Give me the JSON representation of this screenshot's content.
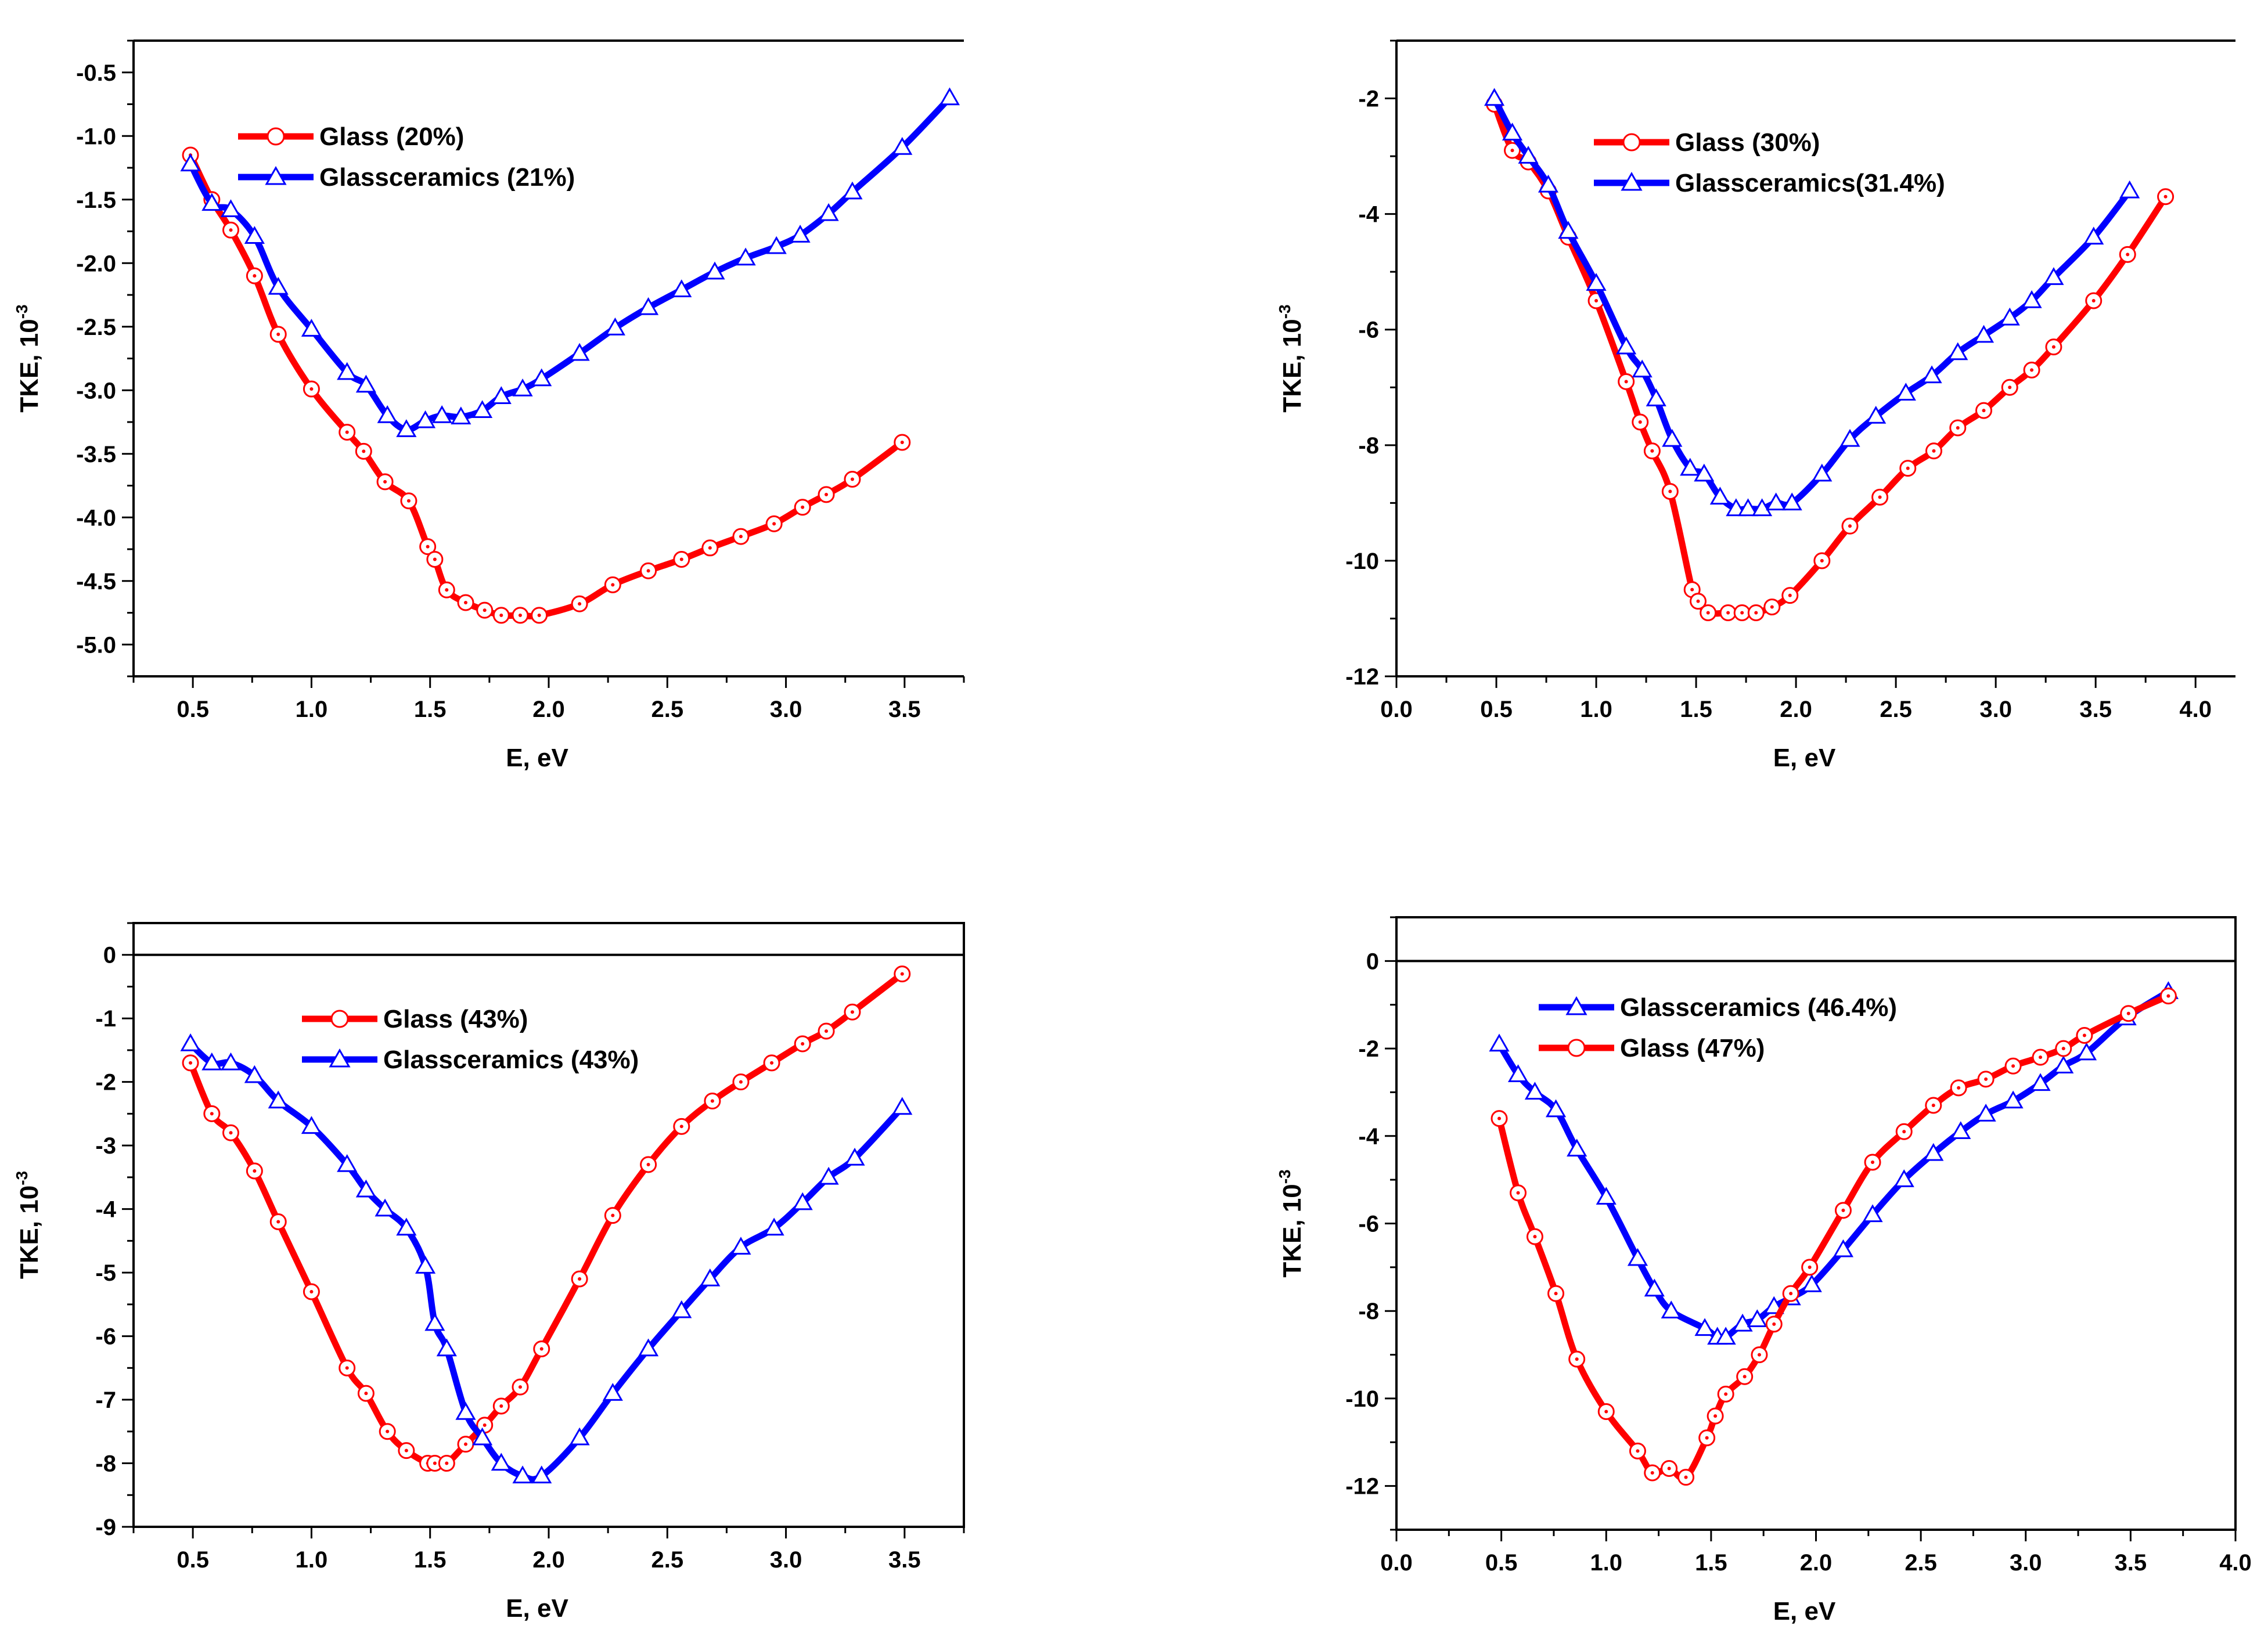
{
  "chart_data": [
    {
      "type": "line",
      "title": "",
      "xlabel": "E, eV",
      "ylabel": "TKE, 10",
      "ylabel_exponent": "-3",
      "xlim": [
        0.25,
        3.75
      ],
      "ylim": [
        -5.25,
        -0.25
      ],
      "frame": "open",
      "top_line_value": null,
      "xticks": [
        0.5,
        1.0,
        1.5,
        2.0,
        2.5,
        3.0,
        3.5
      ],
      "xtick_labels": [
        "0.5",
        "1.0",
        "1.5",
        "2.0",
        "2.5",
        "3.0",
        "3.5"
      ],
      "yticks": [
        -0.5,
        -1.0,
        -1.5,
        -2.0,
        -2.5,
        -3.0,
        -3.5,
        -4.0,
        -4.5,
        -5.0
      ],
      "ytick_labels": [
        "-0.5",
        "-1.0",
        "-1.5",
        "-2.0",
        "-2.5",
        "-3.0",
        "-3.5",
        "-4.0",
        "-4.5",
        "-5.0"
      ],
      "legend_position": "top-left",
      "series": [
        {
          "name": "Glass (20%)",
          "color": "#ff0000",
          "marker": "circle",
          "x": [
            0.49,
            0.58,
            0.66,
            0.76,
            0.86,
            1.0,
            1.15,
            1.22,
            1.31,
            1.41,
            1.49,
            1.52,
            1.57,
            1.65,
            1.73,
            1.8,
            1.88,
            1.96,
            2.13,
            2.27,
            2.42,
            2.56,
            2.68,
            2.81,
            2.95,
            3.07,
            3.17,
            3.28,
            3.49
          ],
          "y": [
            -1.15,
            -1.5,
            -1.74,
            -2.1,
            -2.56,
            -2.99,
            -3.33,
            -3.48,
            -3.72,
            -3.87,
            -4.23,
            -4.33,
            -4.57,
            -4.67,
            -4.73,
            -4.77,
            -4.77,
            -4.77,
            -4.68,
            -4.53,
            -4.42,
            -4.33,
            -4.24,
            -4.15,
            -4.05,
            -3.92,
            -3.82,
            -3.7,
            -3.41
          ]
        },
        {
          "name": "Glassceramics (21%)",
          "color": "#0000ff",
          "marker": "triangle",
          "x": [
            0.49,
            0.58,
            0.66,
            0.76,
            0.86,
            1.0,
            1.15,
            1.23,
            1.32,
            1.4,
            1.48,
            1.55,
            1.63,
            1.72,
            1.8,
            1.89,
            1.97,
            2.13,
            2.28,
            2.42,
            2.56,
            2.7,
            2.83,
            2.96,
            3.06,
            3.18,
            3.28,
            3.49,
            3.69
          ],
          "y": [
            -1.22,
            -1.53,
            -1.58,
            -1.79,
            -2.19,
            -2.52,
            -2.86,
            -2.96,
            -3.2,
            -3.31,
            -3.24,
            -3.2,
            -3.21,
            -3.16,
            -3.05,
            -2.99,
            -2.91,
            -2.71,
            -2.51,
            -2.35,
            -2.21,
            -2.07,
            -1.96,
            -1.87,
            -1.78,
            -1.61,
            -1.44,
            -1.09,
            -0.7
          ]
        }
      ]
    },
    {
      "type": "line",
      "title": "",
      "xlabel": "E, eV",
      "ylabel": "TKE, 10",
      "ylabel_exponent": "-3",
      "xlim": [
        0.0,
        4.2
      ],
      "ylim": [
        -12.0,
        -1.0
      ],
      "frame": "open",
      "top_line_value": null,
      "xticks": [
        0.0,
        0.5,
        1.0,
        1.5,
        2.0,
        2.5,
        3.0,
        3.5,
        4.0
      ],
      "xtick_labels": [
        "0.0",
        "0.5",
        "1.0",
        "1.5",
        "2.0",
        "2.5",
        "3.0",
        "3.5",
        "4.0"
      ],
      "yticks": [
        -2,
        -4,
        -6,
        -8,
        -10,
        -12
      ],
      "ytick_labels": [
        "-2",
        "-4",
        "-6",
        "-8",
        "-10",
        "-12"
      ],
      "legend_position": "top-left",
      "series": [
        {
          "name": "Glass (30%)",
          "color": "#ff0000",
          "marker": "circle",
          "x": [
            0.49,
            0.58,
            0.66,
            0.76,
            0.86,
            1.0,
            1.15,
            1.22,
            1.28,
            1.37,
            1.48,
            1.51,
            1.56,
            1.66,
            1.73,
            1.8,
            1.88,
            1.97,
            2.13,
            2.27,
            2.42,
            2.56,
            2.69,
            2.81,
            2.94,
            3.07,
            3.18,
            3.29,
            3.49,
            3.66,
            3.85
          ],
          "y": [
            -2.1,
            -2.9,
            -3.1,
            -3.6,
            -4.4,
            -5.5,
            -6.9,
            -7.6,
            -8.1,
            -8.8,
            -10.5,
            -10.7,
            -10.9,
            -10.9,
            -10.9,
            -10.9,
            -10.8,
            -10.6,
            -10.0,
            -9.4,
            -8.9,
            -8.4,
            -8.1,
            -7.7,
            -7.4,
            -7.0,
            -6.7,
            -6.3,
            -5.5,
            -4.7,
            -3.7
          ]
        },
        {
          "name": "Glassceramics(31.4%)",
          "color": "#0000ff",
          "marker": "triangle",
          "x": [
            0.49,
            0.58,
            0.66,
            0.76,
            0.86,
            1.0,
            1.15,
            1.23,
            1.3,
            1.38,
            1.47,
            1.54,
            1.62,
            1.7,
            1.76,
            1.83,
            1.9,
            1.98,
            2.13,
            2.27,
            2.4,
            2.55,
            2.68,
            2.81,
            2.94,
            3.07,
            3.18,
            3.29,
            3.49,
            3.67
          ],
          "y": [
            -2.0,
            -2.6,
            -3.0,
            -3.5,
            -4.3,
            -5.2,
            -6.3,
            -6.7,
            -7.2,
            -7.9,
            -8.4,
            -8.5,
            -8.9,
            -9.1,
            -9.1,
            -9.1,
            -9.0,
            -9.0,
            -8.5,
            -7.9,
            -7.5,
            -7.1,
            -6.8,
            -6.4,
            -6.1,
            -5.8,
            -5.5,
            -5.1,
            -4.4,
            -3.6
          ]
        }
      ]
    },
    {
      "type": "line",
      "title": "",
      "xlabel": "E, eV",
      "ylabel": "TKE, 10",
      "ylabel_exponent": "-3",
      "xlim": [
        0.25,
        3.75
      ],
      "ylim": [
        -9.0,
        0.5
      ],
      "frame": "box",
      "top_line_value": 0,
      "xticks": [
        0.5,
        1.0,
        1.5,
        2.0,
        2.5,
        3.0,
        3.5
      ],
      "xtick_labels": [
        "0.5",
        "1.0",
        "1.5",
        "2.0",
        "2.5",
        "3.0",
        "3.5"
      ],
      "yticks": [
        0,
        -1,
        -2,
        -3,
        -4,
        -5,
        -6,
        -7,
        -8,
        -9
      ],
      "ytick_labels": [
        "0",
        "-1",
        "-2",
        "-3",
        "-4",
        "-5",
        "-6",
        "-7",
        "-8",
        "-9"
      ],
      "legend_position": "top-center",
      "series": [
        {
          "name": "Glass (43%)",
          "color": "#ff0000",
          "marker": "circle",
          "x": [
            0.49,
            0.58,
            0.66,
            0.76,
            0.86,
            1.0,
            1.15,
            1.23,
            1.32,
            1.4,
            1.49,
            1.52,
            1.57,
            1.65,
            1.73,
            1.8,
            1.88,
            1.97,
            2.13,
            2.27,
            2.42,
            2.56,
            2.69,
            2.81,
            2.94,
            3.07,
            3.17,
            3.28,
            3.49
          ],
          "y": [
            -1.7,
            -2.5,
            -2.8,
            -3.4,
            -4.2,
            -5.3,
            -6.5,
            -6.9,
            -7.5,
            -7.8,
            -8.0,
            -8.0,
            -8.0,
            -7.7,
            -7.4,
            -7.1,
            -6.8,
            -6.2,
            -5.1,
            -4.1,
            -3.3,
            -2.7,
            -2.3,
            -2.0,
            -1.7,
            -1.4,
            -1.2,
            -0.9,
            -0.3
          ]
        },
        {
          "name": "Glassceramics (43%)",
          "color": "#0000ff",
          "marker": "triangle",
          "x": [
            0.49,
            0.58,
            0.66,
            0.76,
            0.86,
            1.0,
            1.15,
            1.23,
            1.31,
            1.4,
            1.48,
            1.52,
            1.57,
            1.65,
            1.72,
            1.8,
            1.89,
            1.97,
            2.13,
            2.27,
            2.42,
            2.56,
            2.68,
            2.81,
            2.95,
            3.07,
            3.18,
            3.29,
            3.49
          ],
          "y": [
            -1.4,
            -1.7,
            -1.7,
            -1.9,
            -2.3,
            -2.7,
            -3.3,
            -3.7,
            -4.0,
            -4.3,
            -4.9,
            -5.8,
            -6.2,
            -7.2,
            -7.6,
            -8.0,
            -8.2,
            -8.2,
            -7.6,
            -6.9,
            -6.2,
            -5.6,
            -5.1,
            -4.6,
            -4.3,
            -3.9,
            -3.5,
            -3.2,
            -2.4
          ]
        }
      ]
    },
    {
      "type": "line",
      "title": "",
      "xlabel": "E, eV",
      "ylabel": "TKE, 10",
      "ylabel_exponent": "-3",
      "xlim": [
        0.0,
        4.0
      ],
      "ylim": [
        -13.0,
        1.0
      ],
      "frame": "box",
      "top_line_value": 0,
      "xticks": [
        0.0,
        0.5,
        1.0,
        1.5,
        2.0,
        2.5,
        3.0,
        3.5,
        4.0
      ],
      "xtick_labels": [
        "0.0",
        "0.5",
        "1.0",
        "1.5",
        "2.0",
        "2.5",
        "3.0",
        "3.5",
        "4.0"
      ],
      "yticks": [
        0,
        -2,
        -4,
        -6,
        -8,
        -10,
        -12
      ],
      "ytick_labels": [
        "0",
        "-2",
        "-4",
        "-6",
        "-8",
        "-10",
        "-12"
      ],
      "legend_position": "top-left",
      "series": [
        {
          "name": "Glassceramics (46.4%)",
          "color": "#0000ff",
          "marker": "triangle",
          "x": [
            0.49,
            0.58,
            0.66,
            0.76,
            0.86,
            1.0,
            1.15,
            1.23,
            1.31,
            1.47,
            1.53,
            1.57,
            1.65,
            1.72,
            1.8,
            1.88,
            1.98,
            2.13,
            2.27,
            2.42,
            2.56,
            2.69,
            2.81,
            2.94,
            3.07,
            3.18,
            3.29,
            3.48,
            3.68
          ],
          "y": [
            -1.9,
            -2.6,
            -3.0,
            -3.4,
            -4.3,
            -5.4,
            -6.8,
            -7.5,
            -8.0,
            -8.4,
            -8.6,
            -8.6,
            -8.3,
            -8.2,
            -7.9,
            -7.7,
            -7.4,
            -6.6,
            -5.8,
            -5.0,
            -4.4,
            -3.9,
            -3.5,
            -3.2,
            -2.8,
            -2.4,
            -2.1,
            -1.3,
            -0.7
          ]
        },
        {
          "name": "Glass (47%)",
          "color": "#ff0000",
          "marker": "circle",
          "x": [
            0.49,
            0.58,
            0.66,
            0.76,
            0.86,
            1.0,
            1.15,
            1.22,
            1.3,
            1.38,
            1.48,
            1.52,
            1.57,
            1.66,
            1.73,
            1.8,
            1.88,
            1.97,
            2.13,
            2.27,
            2.42,
            2.56,
            2.68,
            2.81,
            2.94,
            3.07,
            3.18,
            3.28,
            3.49,
            3.68
          ],
          "y": [
            -3.6,
            -5.3,
            -6.3,
            -7.6,
            -9.1,
            -10.3,
            -11.2,
            -11.7,
            -11.6,
            -11.8,
            -10.9,
            -10.4,
            -9.9,
            -9.5,
            -9.0,
            -8.3,
            -7.6,
            -7.0,
            -5.7,
            -4.6,
            -3.9,
            -3.3,
            -2.9,
            -2.7,
            -2.4,
            -2.2,
            -2.0,
            -1.7,
            -1.2,
            -0.8
          ]
        }
      ]
    }
  ]
}
